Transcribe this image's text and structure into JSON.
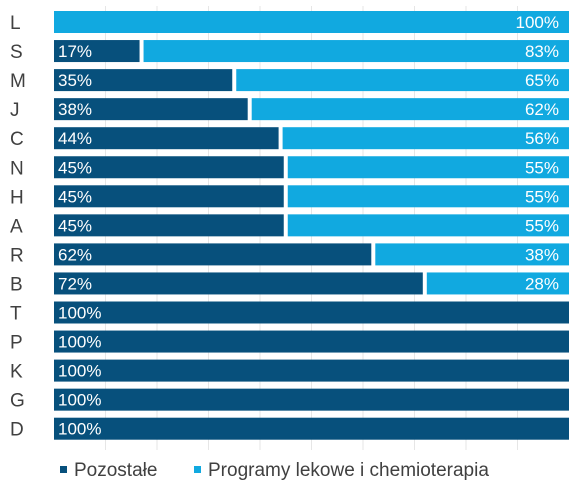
{
  "chart_data": {
    "type": "bar",
    "orientation": "horizontal",
    "stacked": true,
    "normalized_percent": true,
    "categories": [
      "L",
      "S",
      "M",
      "J",
      "C",
      "N",
      "H",
      "A",
      "R",
      "B",
      "T",
      "P",
      "K",
      "G",
      "D"
    ],
    "series": [
      {
        "name": "Pozostałe",
        "color": "#07507c",
        "values": [
          0,
          17,
          35,
          38,
          44,
          45,
          45,
          45,
          62,
          72,
          100,
          100,
          100,
          100,
          100
        ],
        "labels": [
          "",
          "17%",
          "35%",
          "38%",
          "44%",
          "45%",
          "45%",
          "45%",
          "62%",
          "72%",
          "100%",
          "100%",
          "100%",
          "100%",
          "100%"
        ]
      },
      {
        "name": "Programy lekowe i chemioterapia",
        "color": "#11a9e0",
        "values": [
          100,
          83,
          65,
          62,
          56,
          55,
          55,
          55,
          38,
          28,
          0,
          0,
          0,
          0,
          0
        ],
        "labels": [
          "100%",
          "83%",
          "65%",
          "62%",
          "56%",
          "55%",
          "55%",
          "55%",
          "38%",
          "28%",
          "",
          "",
          "",
          "",
          ""
        ]
      }
    ],
    "xlim": [
      0,
      100
    ],
    "grid": true,
    "legend": "bottom"
  }
}
